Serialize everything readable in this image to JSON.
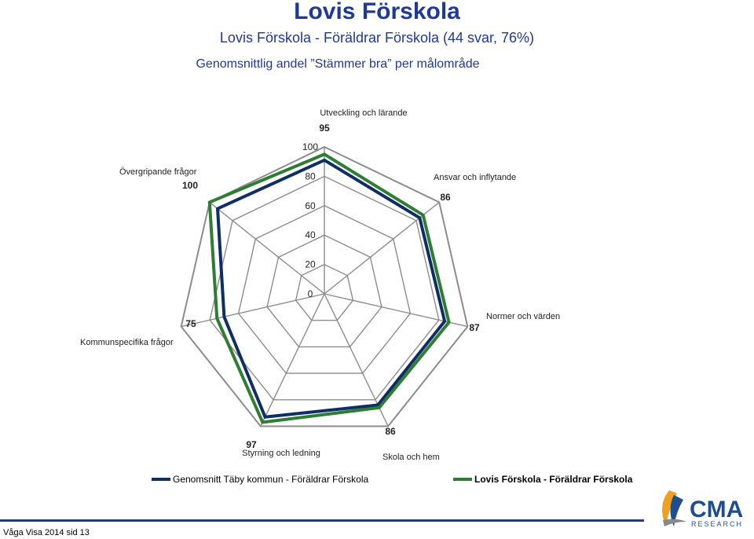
{
  "header": {
    "title": "Lovis Förskola",
    "subtitle": "Lovis Förskola - Föräldrar Förskola (44 svar,  76%)",
    "heading": "Genomsnittlig andel ”Stämmer bra” per målområde"
  },
  "chart_data": {
    "type": "radar",
    "axes": [
      "Utveckling och lärande",
      "Ansvar och inflytande",
      "Normer och värden",
      "Skola och hem",
      "Styrning och ledning",
      "Kommunspecifika frågor",
      "Övergripande frågor"
    ],
    "range": [
      0,
      100
    ],
    "ticks": [
      0,
      20,
      40,
      60,
      80,
      100
    ],
    "series": [
      {
        "name": "Genomsnitt Täby kommun - Föräldrar Förskola",
        "color": "#0f2e63",
        "values": [
          91,
          83,
          84,
          84,
          93,
          70,
          93
        ]
      },
      {
        "name": "Lovis Förskola - Föräldrar Förskola",
        "color": "#2e7d32",
        "values": [
          95,
          86,
          87,
          86,
          97,
          75,
          100
        ]
      }
    ],
    "data_labels": [
      "95",
      "86",
      "87",
      "86",
      "97",
      "75",
      "100"
    ],
    "legend_position": "bottom",
    "grid": true
  },
  "legend": {
    "item1": "Genomsnitt Täby kommun - Föräldrar Förskola",
    "item2": "Lovis Förskola - Föräldrar Förskola"
  },
  "footer": {
    "text": "Våga Visa 2014 sid 13"
  },
  "logo": {
    "name": "CMA",
    "tagline": "RESEARCH",
    "colors": [
      "#1f4e8c",
      "#f0a020",
      "#888888"
    ]
  }
}
